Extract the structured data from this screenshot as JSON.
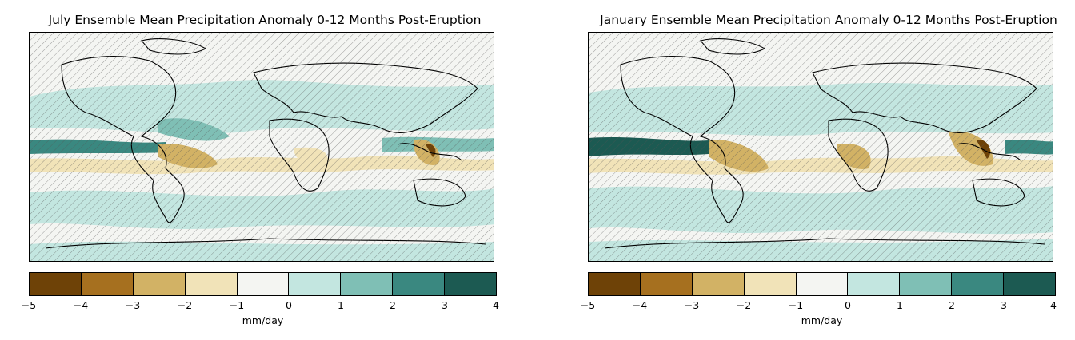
{
  "panels": [
    {
      "title": "July Ensemble Mean Precipitation Anomaly 0-12 Months Post-Eruption",
      "colorbar_label": "mm/day"
    },
    {
      "title": "January Ensemble Mean Precipitation Anomaly 0-12 Months Post-Eruption",
      "colorbar_label": "mm/day"
    }
  ],
  "colorbar": {
    "ticks": [
      "−5",
      "−4",
      "−3",
      "−2",
      "−1",
      "0",
      "1",
      "2",
      "3",
      "4"
    ],
    "colors": [
      "#6e4207",
      "#a6701f",
      "#d2b265",
      "#f1e3b8",
      "#f4f5f2",
      "#c3e6e0",
      "#7fbfb5",
      "#3a8880",
      "#1c5a52"
    ]
  },
  "map": {
    "hatch": "diagonal hatching marks non-significant areas",
    "land_outline_color": "#000000"
  }
}
